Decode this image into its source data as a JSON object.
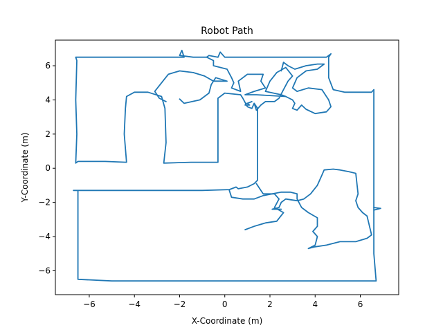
{
  "chart_data": {
    "type": "line",
    "title": "Robot Path",
    "xlabel": "X-Coordinate (m)",
    "ylabel": "Y-Coordinate (m)",
    "xlim": [
      -7.5,
      7.7
    ],
    "ylim": [
      -7.4,
      7.5
    ],
    "xticks": [
      -6,
      -4,
      -2,
      0,
      2,
      4,
      6
    ],
    "yticks": [
      -6,
      -4,
      -2,
      0,
      2,
      4,
      6
    ],
    "grid": false,
    "color": "#1f77b4",
    "series": [
      {
        "values": [
          [
            -6.6,
            6.5
          ],
          [
            -1.8,
            6.5
          ],
          [
            -1.9,
            6.9
          ],
          [
            -2.0,
            6.6
          ],
          [
            -1.4,
            6.5
          ],
          [
            -0.8,
            6.5
          ],
          [
            -0.7,
            6.6
          ],
          [
            -0.3,
            6.5
          ],
          [
            -0.2,
            6.8
          ],
          [
            0.0,
            6.5
          ],
          [
            4.5,
            6.5
          ],
          [
            4.7,
            6.7
          ],
          [
            4.6,
            6.5
          ],
          [
            4.6,
            5.3
          ],
          [
            4.8,
            4.6
          ],
          [
            5.3,
            4.45
          ],
          [
            6.5,
            4.45
          ],
          [
            6.6,
            4.6
          ],
          [
            6.6,
            2.0
          ],
          [
            6.6,
            -2.0
          ],
          [
            6.6,
            -5.0
          ],
          [
            6.7,
            -6.6
          ],
          [
            6.0,
            -6.6
          ],
          [
            0.0,
            -6.6
          ],
          [
            -5.0,
            -6.6
          ],
          [
            -6.5,
            -6.5
          ],
          [
            -6.5,
            -4.0
          ],
          [
            -6.5,
            -1.3
          ],
          [
            -6.7,
            -1.3
          ],
          [
            -5.0,
            -1.3
          ],
          [
            -1.0,
            -1.3
          ],
          [
            0.2,
            -1.25
          ],
          [
            0.5,
            -1.1
          ],
          [
            0.6,
            -1.2
          ],
          [
            1.0,
            -1.1
          ],
          [
            1.3,
            -0.9
          ],
          [
            1.45,
            -0.7
          ],
          [
            1.45,
            1.0
          ],
          [
            1.45,
            3.5
          ],
          [
            1.3,
            3.8
          ],
          [
            1.2,
            3.5
          ],
          [
            1.0,
            3.6
          ],
          [
            0.8,
            4.1
          ],
          [
            0.7,
            4.3
          ],
          [
            0.0,
            4.4
          ],
          [
            -0.3,
            4.1
          ],
          [
            -0.3,
            2.0
          ],
          [
            -0.3,
            0.35
          ],
          [
            -1.5,
            0.35
          ],
          [
            -2.7,
            0.3
          ],
          [
            -2.6,
            1.5
          ],
          [
            -2.65,
            3.5
          ],
          [
            -2.8,
            4.2
          ],
          [
            -3.4,
            4.45
          ],
          [
            -4.0,
            4.45
          ],
          [
            -4.35,
            4.2
          ],
          [
            -4.4,
            3.5
          ],
          [
            -4.45,
            2.0
          ],
          [
            -4.35,
            0.35
          ],
          [
            -5.3,
            0.4
          ],
          [
            -6.5,
            0.4
          ],
          [
            -6.6,
            0.3
          ],
          [
            -6.55,
            2.0
          ],
          [
            -6.6,
            4.0
          ],
          [
            -6.55,
            6.3
          ],
          [
            -6.6,
            6.5
          ]
        ]
      },
      {
        "values": [
          [
            -2.0,
            4.05
          ],
          [
            -1.8,
            3.8
          ],
          [
            -1.1,
            4.0
          ],
          [
            -0.7,
            4.4
          ],
          [
            -0.6,
            4.9
          ],
          [
            -0.4,
            5.3
          ],
          [
            0.1,
            5.1
          ],
          [
            -0.5,
            5.1
          ],
          [
            -0.9,
            5.4
          ],
          [
            -1.4,
            5.6
          ],
          [
            -2.0,
            5.7
          ],
          [
            -2.5,
            5.5
          ],
          [
            -2.8,
            5.0
          ],
          [
            -3.1,
            4.5
          ],
          [
            -2.9,
            4.1
          ],
          [
            -2.6,
            3.9
          ]
        ]
      },
      {
        "values": [
          [
            -0.8,
            6.5
          ],
          [
            -0.5,
            6.3
          ],
          [
            -0.5,
            6.0
          ],
          [
            0.1,
            5.8
          ],
          [
            0.3,
            5.3
          ],
          [
            0.4,
            5.0
          ],
          [
            0.3,
            4.7
          ],
          [
            0.7,
            4.5
          ],
          [
            0.6,
            5.1
          ],
          [
            1.0,
            5.5
          ],
          [
            1.7,
            5.5
          ],
          [
            1.6,
            5.1
          ],
          [
            1.8,
            4.7
          ],
          [
            1.3,
            4.5
          ],
          [
            0.9,
            4.3
          ],
          [
            1.4,
            4.3
          ],
          [
            2.7,
            4.2
          ],
          [
            2.5,
            4.3
          ],
          [
            1.8,
            4.5
          ],
          [
            2.0,
            5.1
          ],
          [
            2.3,
            5.6
          ],
          [
            2.7,
            5.9
          ],
          [
            3.0,
            5.4
          ],
          [
            2.8,
            5.1
          ],
          [
            2.6,
            4.6
          ],
          [
            2.4,
            4.1
          ],
          [
            2.2,
            3.9
          ],
          [
            1.8,
            3.9
          ],
          [
            1.6,
            3.7
          ],
          [
            1.4,
            3.4
          ],
          [
            1.3,
            3.8
          ]
        ]
      },
      {
        "values": [
          [
            0.95,
            3.8
          ],
          [
            0.9,
            3.7
          ],
          [
            1.1,
            3.7
          ],
          [
            1.0,
            3.8
          ],
          [
            1.2,
            3.9
          ]
        ]
      },
      {
        "values": [
          [
            2.7,
            4.2
          ],
          [
            3.0,
            4.0
          ],
          [
            3.1,
            3.8
          ],
          [
            3.0,
            3.5
          ],
          [
            3.2,
            3.4
          ],
          [
            3.4,
            3.7
          ],
          [
            3.6,
            3.45
          ],
          [
            4.0,
            3.2
          ],
          [
            4.5,
            3.3
          ],
          [
            4.7,
            3.6
          ],
          [
            4.6,
            4.0
          ],
          [
            4.3,
            4.6
          ],
          [
            3.7,
            4.7
          ],
          [
            3.2,
            4.5
          ],
          [
            3.0,
            4.7
          ],
          [
            3.2,
            5.3
          ],
          [
            3.6,
            5.7
          ],
          [
            4.1,
            5.8
          ],
          [
            4.4,
            6.1
          ],
          [
            4.1,
            6.1
          ],
          [
            3.6,
            6.0
          ],
          [
            3.1,
            5.8
          ],
          [
            2.8,
            6.0
          ],
          [
            2.6,
            6.2
          ],
          [
            2.5,
            5.7
          ]
        ]
      },
      {
        "values": [
          [
            1.4,
            -0.9
          ],
          [
            1.7,
            -1.5
          ],
          [
            2.2,
            -1.5
          ],
          [
            2.4,
            -1.8
          ],
          [
            2.2,
            -2.3
          ],
          [
            2.6,
            -2.6
          ],
          [
            2.3,
            -3.1
          ],
          [
            1.8,
            -3.2
          ],
          [
            1.3,
            -3.4
          ],
          [
            0.9,
            -3.6
          ]
        ]
      },
      {
        "values": [
          [
            0.2,
            -1.3
          ],
          [
            0.3,
            -1.7
          ],
          [
            0.8,
            -1.8
          ],
          [
            1.3,
            -1.8
          ],
          [
            1.7,
            -1.6
          ],
          [
            2.1,
            -1.5
          ],
          [
            2.5,
            -1.4
          ],
          [
            2.9,
            -1.4
          ],
          [
            3.2,
            -1.5
          ],
          [
            3.2,
            -1.8
          ],
          [
            3.4,
            -2.3
          ],
          [
            3.7,
            -2.6
          ],
          [
            4.1,
            -2.9
          ],
          [
            4.1,
            -3.4
          ],
          [
            3.9,
            -3.7
          ],
          [
            4.1,
            -4.0
          ],
          [
            4.0,
            -4.5
          ],
          [
            3.7,
            -4.7
          ],
          [
            4.0,
            -4.6
          ],
          [
            4.5,
            -4.5
          ],
          [
            5.1,
            -4.3
          ],
          [
            5.8,
            -4.3
          ],
          [
            6.3,
            -4.1
          ],
          [
            6.5,
            -3.9
          ],
          [
            6.3,
            -2.8
          ],
          [
            6.1,
            -2.6
          ],
          [
            5.9,
            -2.3
          ],
          [
            5.8,
            -1.9
          ],
          [
            5.9,
            -1.5
          ],
          [
            5.8,
            -0.3
          ],
          [
            5.5,
            -0.2
          ],
          [
            5.1,
            -0.1
          ],
          [
            4.8,
            -0.05
          ],
          [
            4.4,
            -0.1
          ],
          [
            4.3,
            -0.4
          ],
          [
            4.1,
            -1.0
          ],
          [
            3.8,
            -1.5
          ],
          [
            3.5,
            -1.8
          ],
          [
            3.2,
            -1.9
          ],
          [
            2.7,
            -1.8
          ],
          [
            2.5,
            -2.0
          ],
          [
            2.4,
            -2.3
          ],
          [
            2.1,
            -2.4
          ],
          [
            2.5,
            -2.4
          ]
        ]
      },
      {
        "values": [
          [
            6.6,
            -2.3
          ],
          [
            6.9,
            -2.35
          ],
          [
            6.6,
            -2.45
          ]
        ]
      }
    ]
  }
}
